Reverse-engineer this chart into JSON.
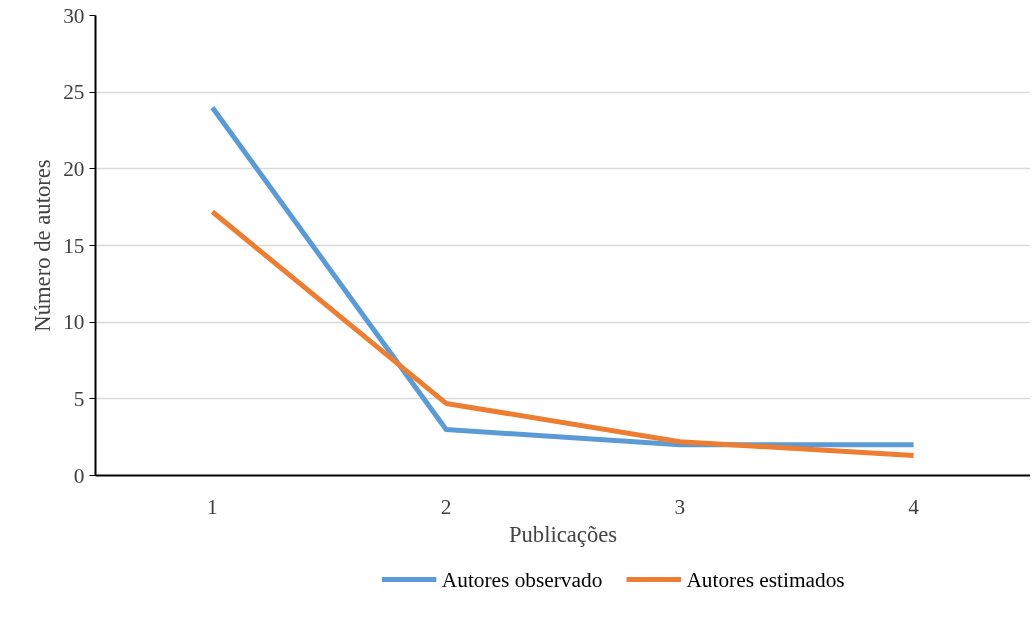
{
  "chart_data": {
    "type": "line",
    "xlabel": "Publicações",
    "ylabel": "Número de autores",
    "categories": [
      "1",
      "2",
      "3",
      "4"
    ],
    "series": [
      {
        "name": "Autores observado",
        "color": "#5b9bd5",
        "values": [
          24,
          3,
          2,
          2
        ]
      },
      {
        "name": "Autores estimados",
        "color": "#ed7d31",
        "values": [
          17.2,
          4.7,
          2.2,
          1.3
        ]
      }
    ],
    "ylim": [
      0,
      30
    ],
    "yticks": [
      0,
      5,
      10,
      15,
      20,
      25,
      30
    ],
    "grid": "y",
    "legend": "bottom",
    "marker": "none",
    "line_style": "solid"
  }
}
